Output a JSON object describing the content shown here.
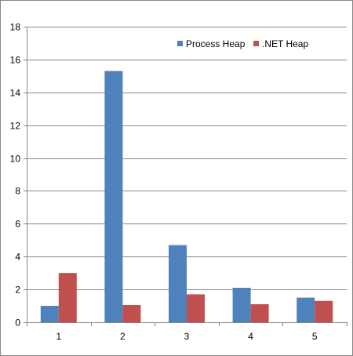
{
  "chart_data": {
    "type": "bar",
    "title": "",
    "xlabel": "",
    "ylabel": "",
    "categories": [
      "1",
      "2",
      "3",
      "4",
      "5"
    ],
    "series": [
      {
        "name": "Process Heap",
        "color": "#4F81BD",
        "values": [
          1.0,
          15.3,
          4.7,
          2.1,
          1.5
        ]
      },
      {
        "name": ".NET Heap",
        "color": "#C0504D",
        "values": [
          3.0,
          1.05,
          1.7,
          1.1,
          1.3
        ]
      }
    ],
    "ylim": [
      0,
      18
    ],
    "yticks": [
      0,
      2,
      4,
      6,
      8,
      10,
      12,
      14,
      16,
      18
    ],
    "grid": true,
    "legend_position": "top-right"
  }
}
